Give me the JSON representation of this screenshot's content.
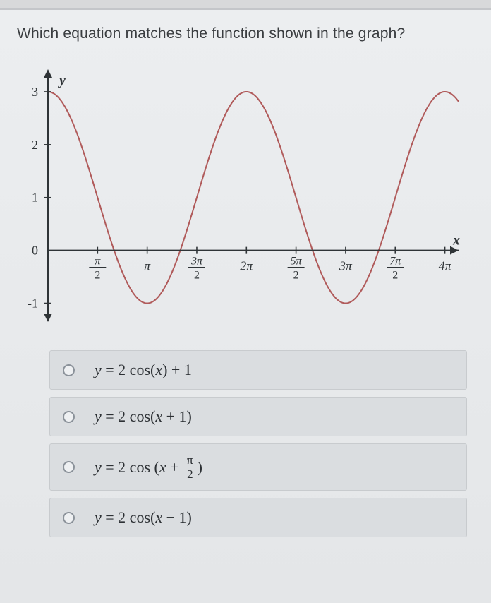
{
  "question": "Which equation matches the function shown in the graph?",
  "graph": {
    "type": "line",
    "function": "2*cos(x)+1",
    "curve_color": "#b05a5a",
    "curve_width": 2.0,
    "axis_color": "#2f3437",
    "axis_width": 2.0,
    "background_color": "#e3e5e7",
    "x_domain_start": 0,
    "x_domain_end_label": "4π",
    "xlim": [
      0,
      13.0
    ],
    "ylim": [
      -1.3,
      3.4
    ],
    "y_ticks": [
      {
        "v": 3,
        "label": "3"
      },
      {
        "v": 2,
        "label": "2"
      },
      {
        "v": 1,
        "label": "1"
      },
      {
        "v": 0,
        "label": "0"
      },
      {
        "v": -1,
        "label": "-1"
      }
    ],
    "x_ticks": [
      {
        "v": 1.5708,
        "label_num": "π",
        "label_den": "2"
      },
      {
        "v": 3.1416,
        "label": "π"
      },
      {
        "v": 4.7124,
        "label_num": "3π",
        "label_den": "2"
      },
      {
        "v": 6.2832,
        "label": "2π"
      },
      {
        "v": 7.854,
        "label_num": "5π",
        "label_den": "2"
      },
      {
        "v": 9.4248,
        "label": "3π"
      },
      {
        "v": 10.9956,
        "label_num": "7π",
        "label_den": "2"
      },
      {
        "v": 12.5664,
        "label": "4π"
      }
    ],
    "y_axis_label": "y",
    "x_axis_label": "x",
    "label_font_family": "Times New Roman, serif",
    "tick_fontsize": 18,
    "axis_label_fontsize": 20,
    "y_arrow": true,
    "x_arrow": true
  },
  "answers": [
    {
      "prefix": "y = 2 cos(",
      "mid": "x",
      "suffix": ") + 1",
      "frac": null
    },
    {
      "prefix": "y = 2 cos(",
      "mid": "x + 1",
      "suffix": ")",
      "frac": null
    },
    {
      "prefix": "y = 2 cos (",
      "mid": "x + ",
      "suffix": ")",
      "frac": {
        "num": "π",
        "den": "2"
      }
    },
    {
      "prefix": "y = 2 cos(",
      "mid": "x − 1",
      "suffix": ")",
      "frac": null
    }
  ]
}
